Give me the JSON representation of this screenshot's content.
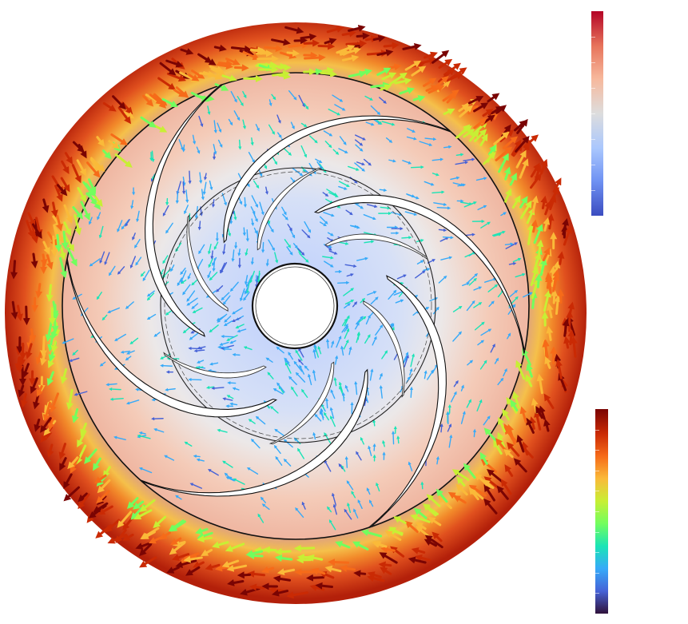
{
  "figure": {
    "description_free": true,
    "colormaps": {
      "pressure": [
        "#3b4cc0",
        "#6f92f3",
        "#aac7fd",
        "#dddddd",
        "#f7b89c",
        "#e7745b",
        "#b40426"
      ],
      "velocity": [
        "#30123b",
        "#4662d7",
        "#36aaf9",
        "#1ae4b6",
        "#72fe5e",
        "#c8ef34",
        "#faba39",
        "#f66b19",
        "#ca2a04",
        "#7a0403"
      ]
    },
    "colors": {
      "blade": "#ffffff",
      "outline": "#111111",
      "hub": "#ffffff"
    },
    "impeller": {
      "main_blades": 6,
      "splitter_blades": 6
    }
  }
}
